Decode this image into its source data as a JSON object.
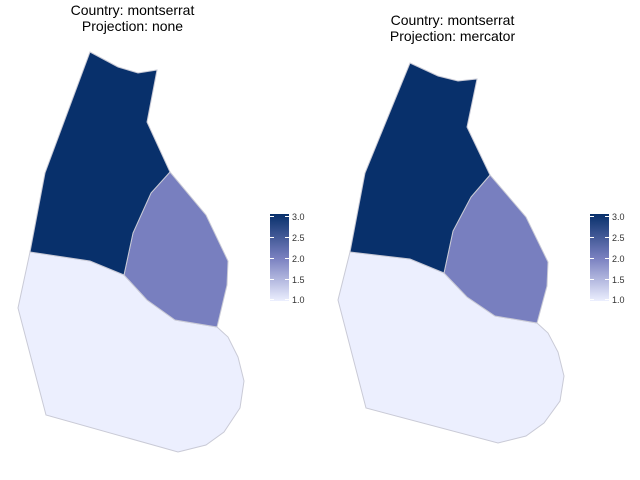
{
  "panels": [
    {
      "title_line1": "Country: montserrat",
      "title_line2": "Projection: none"
    },
    {
      "title_line1": "Country: montserrat",
      "title_line2": "Projection: mercator"
    }
  ],
  "chart_data": {
    "type": "choropleth",
    "regions": [
      {
        "id": "north",
        "value": 3.0,
        "color": "#08306b"
      },
      {
        "id": "central-east",
        "value": 2.0,
        "color": "#787fbf"
      },
      {
        "id": "south",
        "value": 1.0,
        "color": "#eceffe"
      }
    ],
    "legend": {
      "ticks": [
        "3.0",
        "2.5",
        "2.0",
        "1.5",
        "1.0"
      ],
      "min": 1.0,
      "max": 3.0,
      "color_low": "#eceffe",
      "color_mid": "#787fbf",
      "color_high": "#08306b",
      "placement": "right"
    }
  }
}
